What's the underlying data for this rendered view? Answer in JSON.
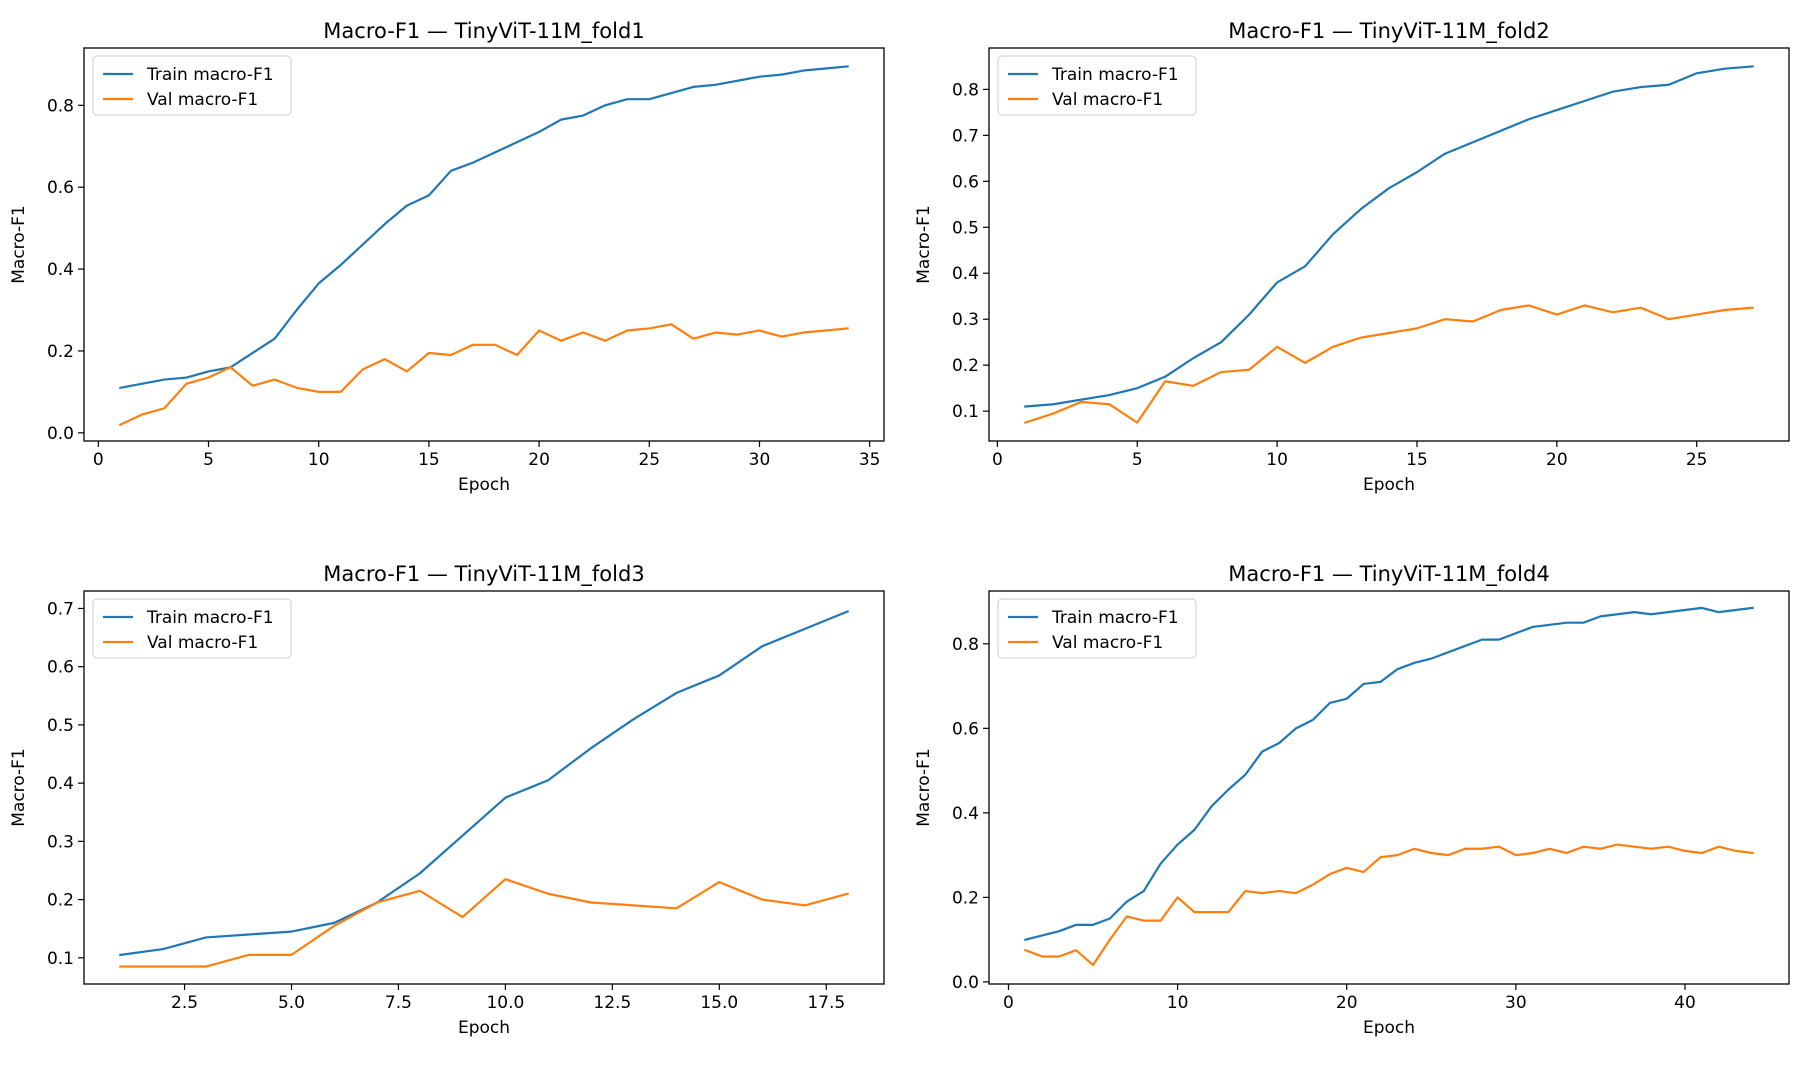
{
  "colors": {
    "train": "#1f77b4",
    "val": "#ff7f0e"
  },
  "chart_data": [
    {
      "type": "line",
      "title": "Macro-F1 — TinyViT-11M_fold1",
      "xlabel": "Epoch",
      "ylabel": "Macro-F1",
      "xlim": [
        -0.65,
        35.65
      ],
      "ylim": [
        -0.02,
        0.94
      ],
      "xticks": [
        0,
        5,
        10,
        15,
        20,
        25,
        30,
        35
      ],
      "xtick_labels": [
        "0",
        "5",
        "10",
        "15",
        "20",
        "25",
        "30",
        "35"
      ],
      "yticks": [
        0.0,
        0.2,
        0.4,
        0.6,
        0.8
      ],
      "ytick_labels": [
        "0.0",
        "0.2",
        "0.4",
        "0.6",
        "0.8"
      ],
      "grid": false,
      "legend": "top-left",
      "x": [
        1,
        2,
        3,
        4,
        5,
        6,
        7,
        8,
        9,
        10,
        11,
        12,
        13,
        14,
        15,
        16,
        17,
        18,
        19,
        20,
        21,
        22,
        23,
        24,
        25,
        26,
        27,
        28,
        29,
        30,
        31,
        32,
        33,
        34
      ],
      "series": [
        {
          "name": "Train macro-F1",
          "values": [
            0.11,
            0.12,
            0.13,
            0.135,
            0.15,
            0.16,
            0.195,
            0.23,
            0.3,
            0.365,
            0.41,
            0.46,
            0.51,
            0.555,
            0.58,
            0.64,
            0.66,
            0.685,
            0.71,
            0.735,
            0.765,
            0.775,
            0.8,
            0.815,
            0.815,
            0.83,
            0.845,
            0.85,
            0.86,
            0.87,
            0.875,
            0.885,
            0.89,
            0.895
          ]
        },
        {
          "name": "Val macro-F1",
          "values": [
            0.02,
            0.045,
            0.06,
            0.12,
            0.135,
            0.16,
            0.115,
            0.13,
            0.11,
            0.1,
            0.1,
            0.155,
            0.18,
            0.15,
            0.195,
            0.19,
            0.215,
            0.215,
            0.19,
            0.25,
            0.225,
            0.245,
            0.225,
            0.25,
            0.255,
            0.265,
            0.23,
            0.245,
            0.24,
            0.25,
            0.235,
            0.245,
            0.25,
            0.255
          ]
        }
      ]
    },
    {
      "type": "line",
      "title": "Macro-F1 — TinyViT-11M_fold2",
      "xlabel": "Epoch",
      "ylabel": "Macro-F1",
      "xlim": [
        -0.3,
        28.3
      ],
      "ylim": [
        0.035,
        0.89
      ],
      "xticks": [
        0,
        5,
        10,
        15,
        20,
        25
      ],
      "xtick_labels": [
        "0",
        "5",
        "10",
        "15",
        "20",
        "25"
      ],
      "yticks": [
        0.1,
        0.2,
        0.3,
        0.4,
        0.5,
        0.6,
        0.7,
        0.8
      ],
      "ytick_labels": [
        "0.1",
        "0.2",
        "0.3",
        "0.4",
        "0.5",
        "0.6",
        "0.7",
        "0.8"
      ],
      "grid": false,
      "legend": "top-left",
      "x": [
        1,
        2,
        3,
        4,
        5,
        6,
        7,
        8,
        9,
        10,
        11,
        12,
        13,
        14,
        15,
        16,
        17,
        18,
        19,
        20,
        21,
        22,
        23,
        24,
        25,
        26,
        27
      ],
      "series": [
        {
          "name": "Train macro-F1",
          "values": [
            0.11,
            0.115,
            0.125,
            0.135,
            0.15,
            0.175,
            0.215,
            0.25,
            0.31,
            0.38,
            0.415,
            0.485,
            0.54,
            0.585,
            0.62,
            0.66,
            0.685,
            0.71,
            0.735,
            0.755,
            0.775,
            0.795,
            0.805,
            0.81,
            0.835,
            0.845,
            0.85
          ]
        },
        {
          "name": "Val macro-F1",
          "values": [
            0.075,
            0.095,
            0.12,
            0.115,
            0.075,
            0.165,
            0.155,
            0.185,
            0.19,
            0.24,
            0.205,
            0.24,
            0.26,
            0.27,
            0.28,
            0.3,
            0.295,
            0.32,
            0.33,
            0.31,
            0.33,
            0.315,
            0.325,
            0.3,
            0.31,
            0.32,
            0.325
          ]
        }
      ]
    },
    {
      "type": "line",
      "title": "Macro-F1 — TinyViT-11M_fold3",
      "xlabel": "Epoch",
      "ylabel": "Macro-F1",
      "xlim": [
        0.15,
        18.85
      ],
      "ylim": [
        0.055,
        0.73
      ],
      "xticks": [
        2.5,
        5.0,
        7.5,
        10.0,
        12.5,
        15.0,
        17.5
      ],
      "xtick_labels": [
        "2.5",
        "5.0",
        "7.5",
        "10.0",
        "12.5",
        "15.0",
        "17.5"
      ],
      "yticks": [
        0.1,
        0.2,
        0.3,
        0.4,
        0.5,
        0.6,
        0.7
      ],
      "ytick_labels": [
        "0.1",
        "0.2",
        "0.3",
        "0.4",
        "0.5",
        "0.6",
        "0.7"
      ],
      "grid": false,
      "legend": "top-left",
      "x": [
        1,
        2,
        3,
        4,
        5,
        6,
        7,
        8,
        9,
        10,
        11,
        12,
        13,
        14,
        15,
        16,
        17,
        18
      ],
      "series": [
        {
          "name": "Train macro-F1",
          "values": [
            0.105,
            0.115,
            0.135,
            0.14,
            0.145,
            0.16,
            0.195,
            0.245,
            0.31,
            0.375,
            0.405,
            0.46,
            0.51,
            0.555,
            0.585,
            0.635,
            0.665,
            0.695
          ]
        },
        {
          "name": "Val macro-F1",
          "values": [
            0.085,
            0.085,
            0.085,
            0.105,
            0.105,
            0.155,
            0.195,
            0.215,
            0.17,
            0.235,
            0.21,
            0.195,
            0.19,
            0.185,
            0.23,
            0.2,
            0.19,
            0.21
          ]
        }
      ]
    },
    {
      "type": "line",
      "title": "Macro-F1 — TinyViT-11M_fold4",
      "xlabel": "Epoch",
      "ylabel": "Macro-F1",
      "xlim": [
        -1.15,
        46.15
      ],
      "ylim": [
        -0.005,
        0.925
      ],
      "xticks": [
        0,
        10,
        20,
        30,
        40
      ],
      "xtick_labels": [
        "0",
        "10",
        "20",
        "30",
        "40"
      ],
      "yticks": [
        0.0,
        0.2,
        0.4,
        0.6,
        0.8
      ],
      "ytick_labels": [
        "0.0",
        "0.2",
        "0.4",
        "0.6",
        "0.8"
      ],
      "grid": false,
      "legend": "top-left",
      "x": [
        1,
        2,
        3,
        4,
        5,
        6,
        7,
        8,
        9,
        10,
        11,
        12,
        13,
        14,
        15,
        16,
        17,
        18,
        19,
        20,
        21,
        22,
        23,
        24,
        25,
        26,
        27,
        28,
        29,
        30,
        31,
        32,
        33,
        34,
        35,
        36,
        37,
        38,
        39,
        40,
        41,
        42,
        43,
        44
      ],
      "series": [
        {
          "name": "Train macro-F1",
          "values": [
            0.1,
            0.11,
            0.12,
            0.135,
            0.135,
            0.15,
            0.19,
            0.215,
            0.28,
            0.325,
            0.36,
            0.415,
            0.455,
            0.49,
            0.545,
            0.565,
            0.6,
            0.62,
            0.66,
            0.67,
            0.705,
            0.71,
            0.74,
            0.755,
            0.765,
            0.78,
            0.795,
            0.81,
            0.81,
            0.825,
            0.84,
            0.845,
            0.85,
            0.85,
            0.865,
            0.87,
            0.875,
            0.87,
            0.875,
            0.88,
            0.885,
            0.875,
            0.88,
            0.885
          ]
        },
        {
          "name": "Val macro-F1",
          "values": [
            0.075,
            0.06,
            0.06,
            0.075,
            0.04,
            0.1,
            0.155,
            0.145,
            0.145,
            0.2,
            0.165,
            0.165,
            0.165,
            0.215,
            0.21,
            0.215,
            0.21,
            0.23,
            0.255,
            0.27,
            0.26,
            0.295,
            0.3,
            0.315,
            0.305,
            0.3,
            0.315,
            0.315,
            0.32,
            0.3,
            0.305,
            0.315,
            0.305,
            0.32,
            0.315,
            0.325,
            0.32,
            0.315,
            0.32,
            0.31,
            0.305,
            0.32,
            0.31,
            0.305
          ]
        }
      ]
    }
  ]
}
